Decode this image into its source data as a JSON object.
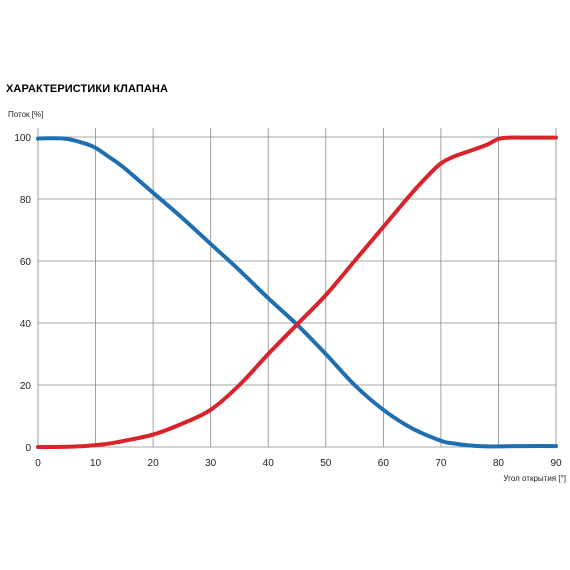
{
  "chart_data": {
    "type": "line",
    "title": "ХАРАКТЕРИСТИКИ КЛАПАНА",
    "xlabel": "Угол открытия [°]",
    "ylabel": "Поток [%]",
    "xlim": [
      0,
      90
    ],
    "ylim": [
      0,
      100
    ],
    "xticks": [
      0,
      10,
      20,
      30,
      40,
      50,
      60,
      70,
      80,
      90
    ],
    "yticks": [
      0,
      20,
      40,
      60,
      80,
      100
    ],
    "grid": true,
    "series": [
      {
        "color": "#1f6fb0",
        "x": [
          0,
          2,
          5,
          8,
          10,
          12,
          15,
          20,
          25,
          30,
          35,
          40,
          45,
          50,
          55,
          60,
          65,
          70,
          72,
          75,
          78,
          80,
          85,
          90
        ],
        "y": [
          99.5,
          99.6,
          99.4,
          98,
          96.5,
          94,
          90,
          82,
          74,
          65.5,
          57,
          48,
          39.5,
          30,
          20,
          12,
          6,
          2,
          1.2,
          0.5,
          0.2,
          0.2,
          0.3,
          0.3
        ]
      },
      {
        "color": "#d8232a",
        "x": [
          0,
          2,
          5,
          8,
          10,
          12,
          15,
          20,
          25,
          30,
          35,
          40,
          45,
          50,
          55,
          60,
          65,
          68,
          70,
          72,
          75,
          78,
          80,
          82,
          85,
          90
        ],
        "y": [
          0,
          0,
          0.1,
          0.3,
          0.6,
          1,
          2,
          4,
          7.5,
          12,
          20,
          30,
          39.5,
          49,
          60,
          71,
          82,
          88,
          91.5,
          93.5,
          95.5,
          97.5,
          99.4,
          99.8,
          99.8,
          99.8
        ]
      }
    ]
  }
}
